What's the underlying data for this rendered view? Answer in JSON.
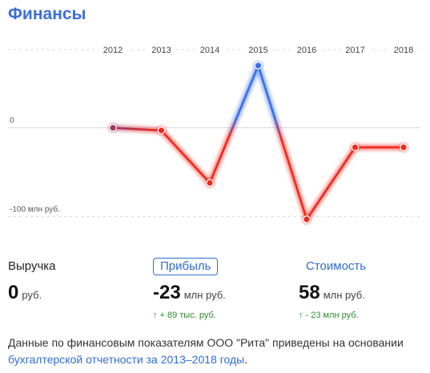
{
  "header": {
    "title": "Финансы"
  },
  "chart_data": {
    "type": "line",
    "categories": [
      "2012",
      "2013",
      "2014",
      "2015",
      "2016",
      "2017",
      "2018"
    ],
    "series": [
      {
        "values": [
          0,
          -3,
          -62,
          70,
          -103,
          -22,
          -22
        ]
      }
    ],
    "y_tick_labels": [
      {
        "value": 0,
        "label": "0"
      },
      {
        "value": -100,
        "label": "-100 млн руб."
      }
    ],
    "ylim": [
      -112,
      88
    ],
    "grid": true,
    "colors": {
      "positive": "#3b6fe8",
      "negative": "#f02a1e",
      "start": "#a2355c"
    }
  },
  "metrics": [
    {
      "label": "Выручка",
      "value": "0",
      "unit": "руб.",
      "delta": "",
      "style": "plain"
    },
    {
      "label": "Прибыль",
      "value": "-23",
      "unit": "млн руб.",
      "delta": "+ 89 тыс. руб.",
      "style": "boxed"
    },
    {
      "label": "Стоимость",
      "value": "58",
      "unit": "млн руб.",
      "delta": "- 23 млн руб.",
      "style": "link"
    }
  ],
  "footnote": {
    "text": "Данные по финансовым показателям ООО \"Рита\" приведены на основании ",
    "link": "бухгалтерской отчетности за 2013–2018 годы",
    "suffix": "."
  }
}
